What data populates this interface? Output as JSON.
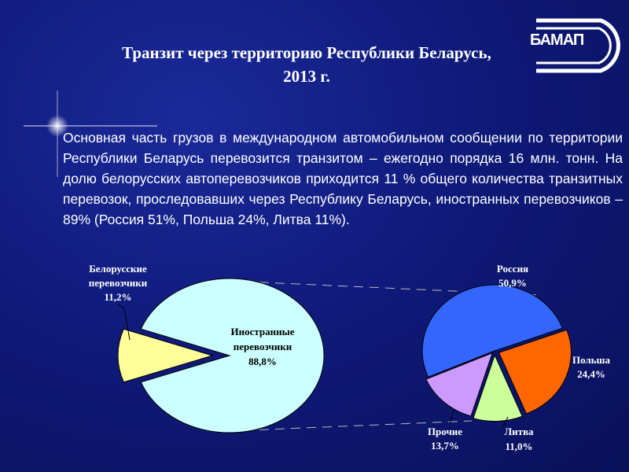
{
  "slide": {
    "title_line1": "Транзит через территорию Республики Беларусь,",
    "title_line2": "2013 г.",
    "logo_text": "БАМАП",
    "body": "Основная часть грузов в международном автомобильном сообщении по территории Республики Беларусь перевозится транзитом – ежегодно порядка 16 млн. тонн. На долю белорусских автоперевозчиков приходится 11 % общего количества транзитных перевозок, проследовавших через Республику Беларусь, иностранных перевозчиков – 89% (Россия 51%, Польша 24%, Литва 11%)."
  },
  "chart_data": [
    {
      "type": "pie",
      "slices": [
        {
          "label_line1": "Белорусские",
          "label_line2": "перевозчики",
          "value_label": "11,2%",
          "value": 11.2,
          "color": "#ffff99"
        },
        {
          "label_line1": "Иностранные",
          "label_line2": "перевозчики",
          "value_label": "88,8%",
          "value": 88.8,
          "color": "#ccffff"
        }
      ]
    },
    {
      "type": "pie",
      "slices": [
        {
          "label_line1": "Россия",
          "value_label": "50,9%",
          "value": 50.9,
          "color": "#3366ff"
        },
        {
          "label_line1": "Польша",
          "value_label": "24,4%",
          "value": 24.4,
          "color": "#ff6600"
        },
        {
          "label_line1": "Литва",
          "value_label": "11,0%",
          "value": 11.0,
          "color": "#ccff99"
        },
        {
          "label_line1": "Прочие",
          "value_label": "13,7%",
          "value": 13.7,
          "color": "#cc99ff"
        }
      ]
    }
  ]
}
